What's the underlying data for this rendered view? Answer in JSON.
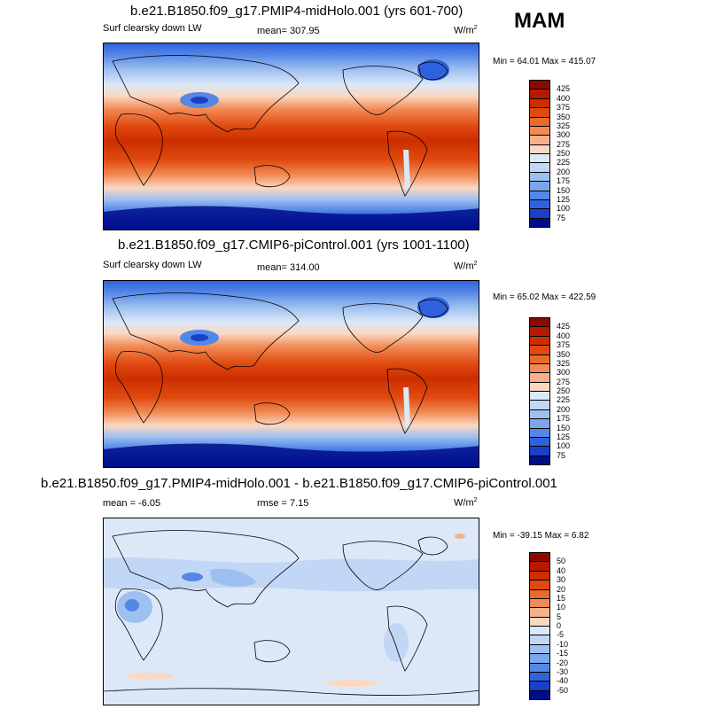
{
  "season": "MAM",
  "units_text": "W/m",
  "units_sup": "2",
  "panels": [
    {
      "title": "b.e21.B1850.f09_g17.PMIP4-midHolo.001 (yrs 601-700)",
      "left_label": "Surf clearsky down LW",
      "center_label": "mean= 307.95",
      "min_max": "Min =  64.01 Max = 415.07"
    },
    {
      "title": "b.e21.B1850.f09_g17.CMIP6-piControl.001 (yrs 1001-1100)",
      "left_label": "Surf clearsky down LW",
      "center_label": "mean= 314.00",
      "min_max": "Min =  65.02 Max = 422.59"
    },
    {
      "title": "b.e21.B1850.f09_g17.PMIP4-midHolo.001 - b.e21.B1850.f09_g17.CMIP6-piControl.001",
      "left_label": "mean =  -6.05",
      "center_label": "rmse =   7.15",
      "min_max": "Min = -39.15 Max =   6.82"
    }
  ],
  "colorbar_field": {
    "labels": [
      "425",
      "400",
      "375",
      "350",
      "325",
      "300",
      "275",
      "250",
      "225",
      "200",
      "175",
      "150",
      "125",
      "100",
      "75"
    ],
    "colors": [
      "#8b0a00",
      "#b51a00",
      "#cc2e00",
      "#e04a10",
      "#ea6a2a",
      "#f28a55",
      "#f6b08c",
      "#fbd8c2",
      "#dce8f8",
      "#c2d7f5",
      "#9ec0f0",
      "#7aa6eb",
      "#5487e6",
      "#2f62dd",
      "#1840c8",
      "#000d8a"
    ]
  },
  "colorbar_diff": {
    "labels": [
      "50",
      "40",
      "30",
      "20",
      "15",
      "10",
      "5",
      "0",
      "-5",
      "-10",
      "-15",
      "-20",
      "-30",
      "-40",
      "-50"
    ],
    "colors": [
      "#8b0a00",
      "#b51a00",
      "#cc2e00",
      "#e04a10",
      "#ea6a2a",
      "#f28a55",
      "#f6b08c",
      "#fbd8c2",
      "#dce8f8",
      "#c2d7f5",
      "#9ec0f0",
      "#7aa6eb",
      "#5487e6",
      "#2f62dd",
      "#1840c8",
      "#000d8a"
    ]
  }
}
